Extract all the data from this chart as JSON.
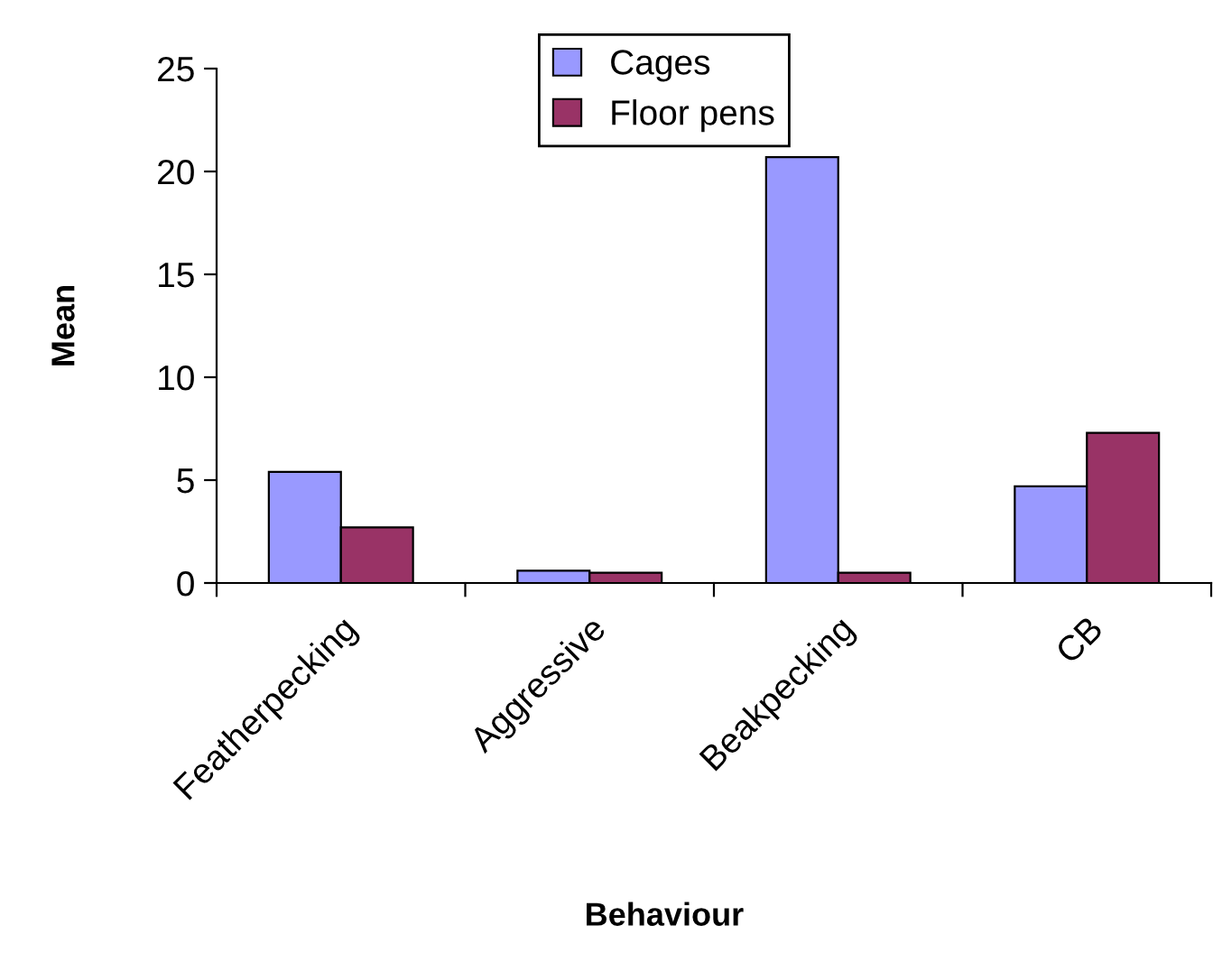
{
  "chart_data": {
    "type": "bar",
    "xlabel": "Behaviour",
    "ylabel": "Mean",
    "categories": [
      "Featherpecking",
      "Aggressive",
      "Beakpecking",
      "CB"
    ],
    "series": [
      {
        "name": "Cages",
        "color": "#9999ff",
        "values": [
          5.4,
          0.6,
          20.7,
          4.7
        ]
      },
      {
        "name": "Floor pens",
        "color": "#993366",
        "values": [
          2.7,
          0.5,
          0.5,
          7.3
        ]
      }
    ],
    "ylim": [
      0,
      25
    ],
    "yticks": [
      0,
      5,
      10,
      15,
      20,
      25
    ],
    "grid": false,
    "legend": "top"
  }
}
